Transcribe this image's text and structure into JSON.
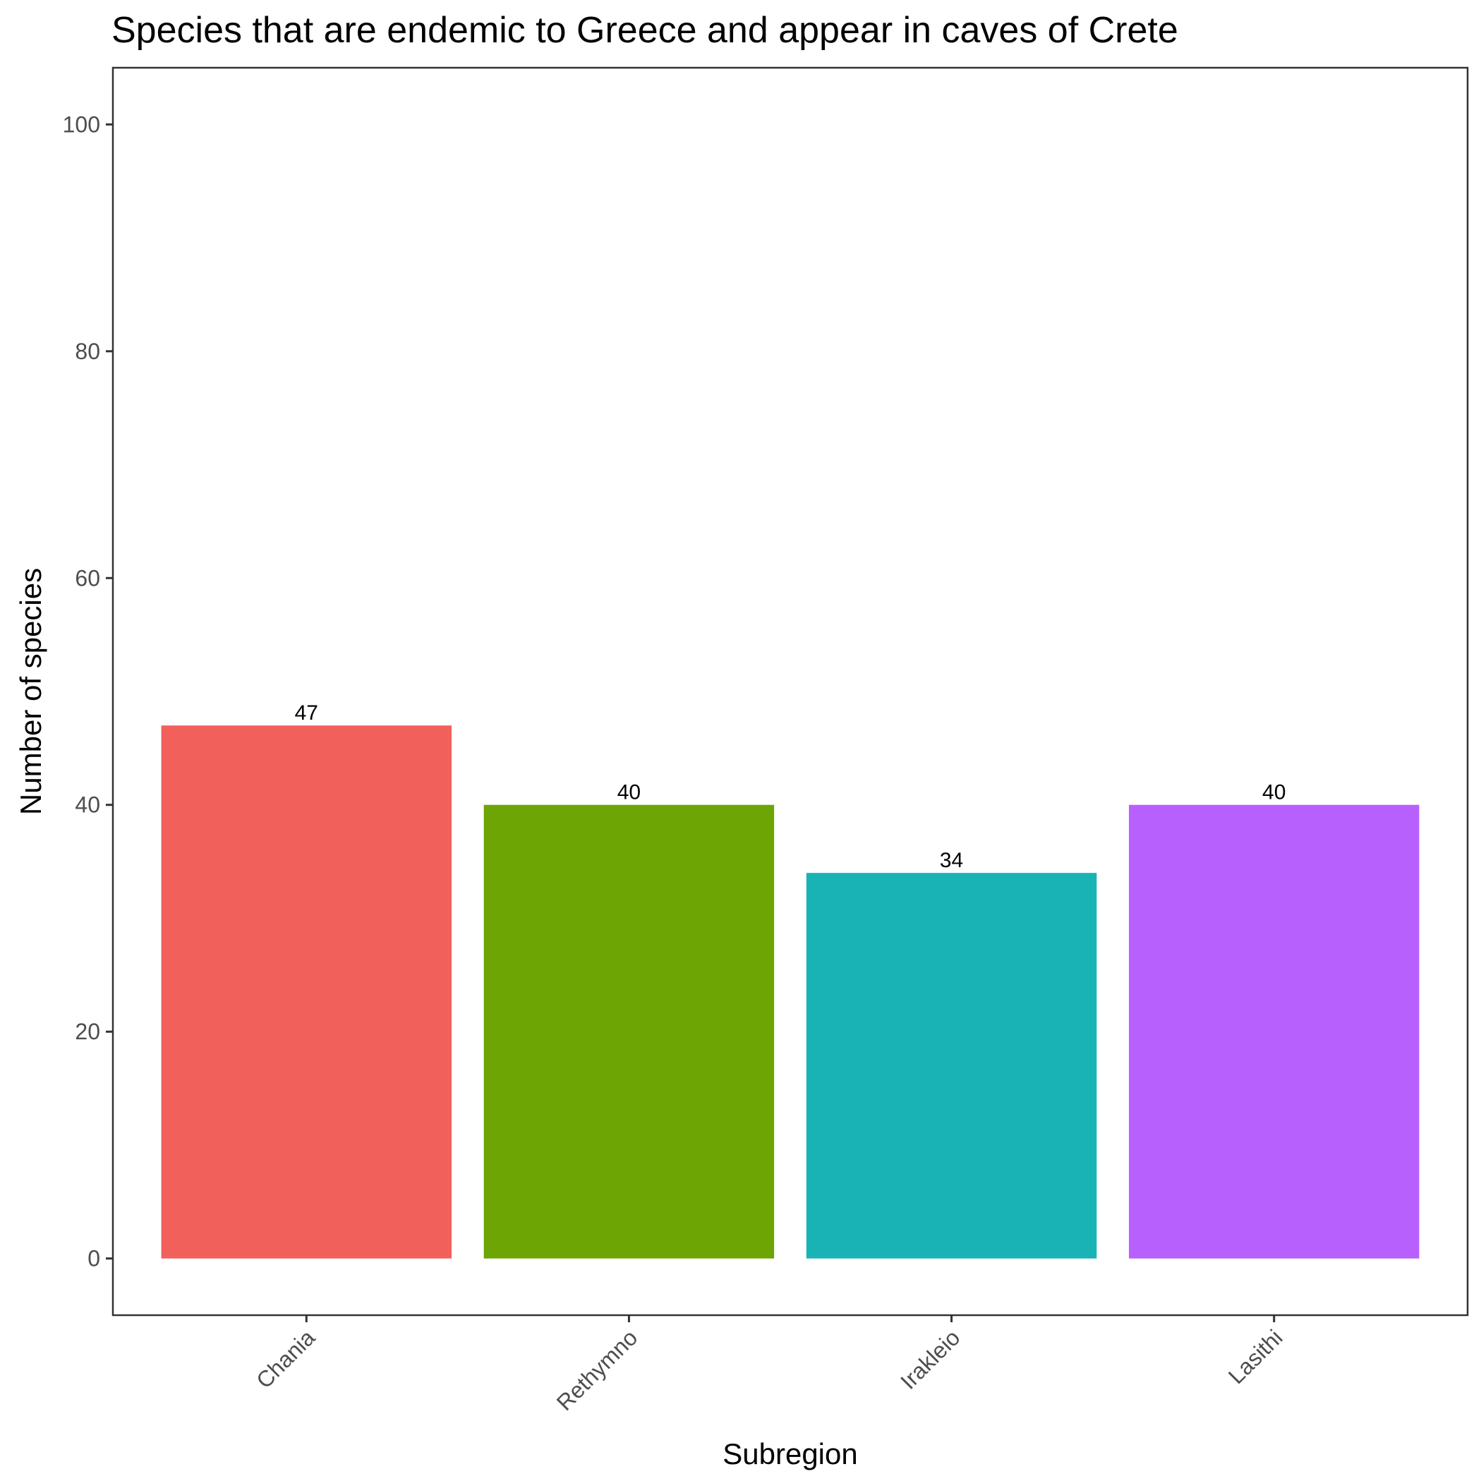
{
  "chart_data": {
    "type": "bar",
    "title": "Species that are endemic to Greece and appear in caves of Crete",
    "xlabel": "Subregion",
    "ylabel": "Number of species",
    "categories": [
      "Chania",
      "Rethymno",
      "Irakleio",
      "Lasithi"
    ],
    "values": [
      47,
      40,
      34,
      40
    ],
    "value_labels": [
      "47",
      "40",
      "34",
      "40"
    ],
    "colors": [
      "#F2605C",
      "#6CA504",
      "#19B3B6",
      "#B760FE"
    ],
    "ylim": [
      -5,
      105
    ],
    "yticks": [
      0,
      20,
      40,
      60,
      80,
      100
    ],
    "ytick_labels": [
      "0",
      "20",
      "40",
      "60",
      "80",
      "100"
    ],
    "grid": false,
    "legend": "none"
  }
}
